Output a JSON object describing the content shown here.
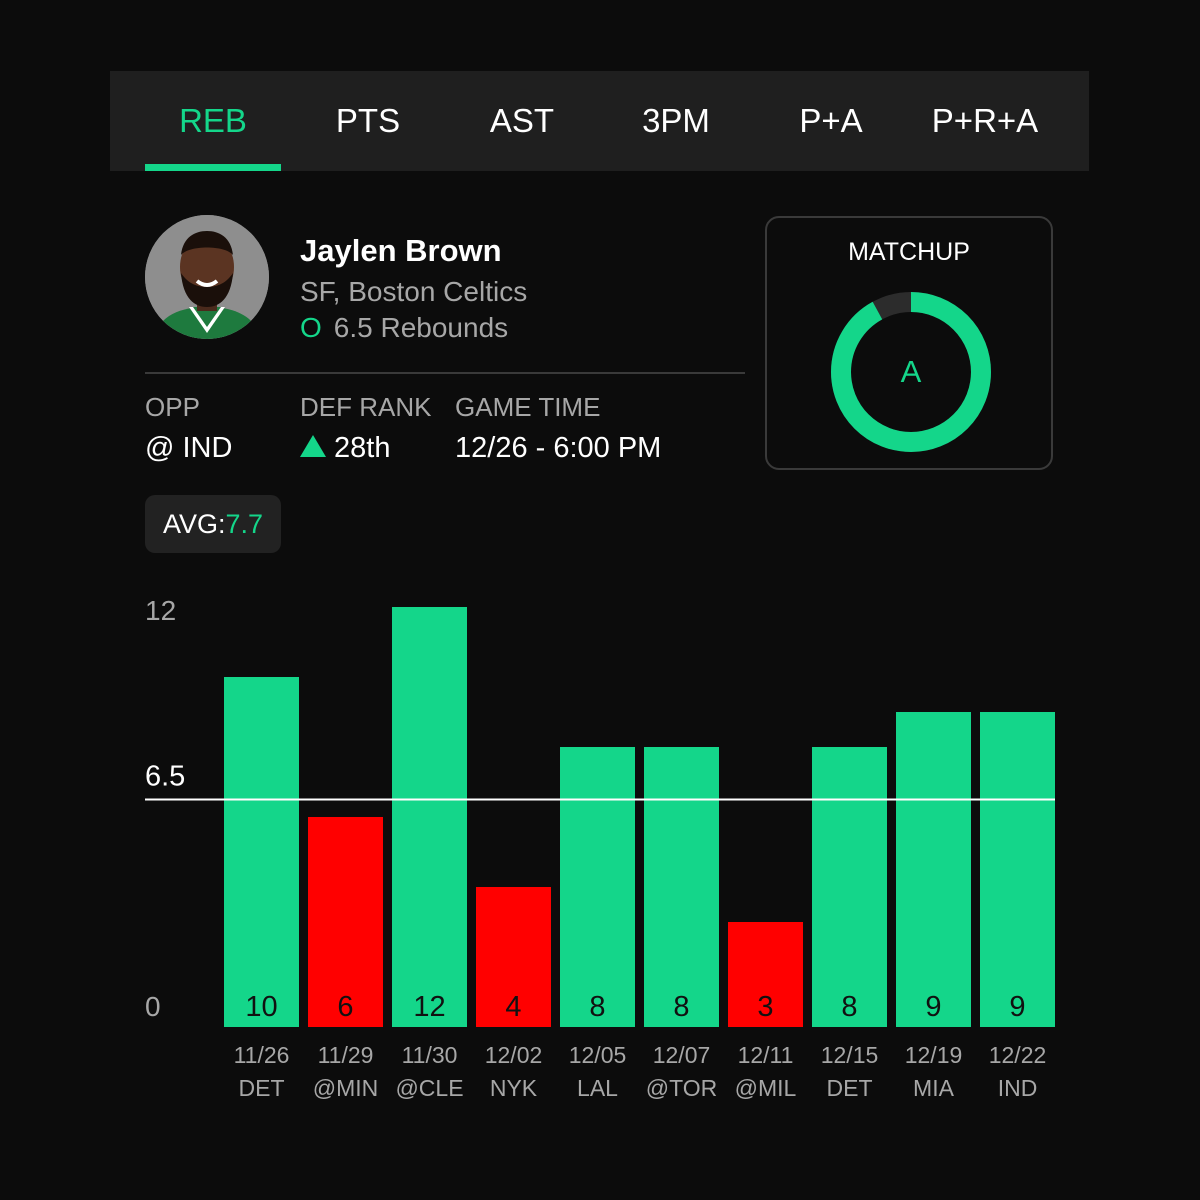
{
  "tabs": [
    {
      "label": "REB",
      "active": true
    },
    {
      "label": "PTS",
      "active": false
    },
    {
      "label": "AST",
      "active": false
    },
    {
      "label": "3PM",
      "active": false
    },
    {
      "label": "P+A",
      "active": false
    },
    {
      "label": "P+R+A",
      "active": false
    }
  ],
  "player": {
    "name": "Jaylen Brown",
    "position_team": "SF, Boston Celtics",
    "over_under": "O",
    "line_text": "6.5 Rebounds",
    "avatar_icon": "player-headshot"
  },
  "info": {
    "opp_label": "OPP",
    "opp_value": "@ IND",
    "def_rank_label": "DEF RANK",
    "def_rank_value": "28th",
    "def_rank_icon": "up-triangle-icon",
    "game_time_label": "GAME TIME",
    "game_time_value": "12/26 - 6:00 PM"
  },
  "matchup": {
    "title": "MATCHUP",
    "grade": "A",
    "fill_fraction": 0.92
  },
  "avg": {
    "label": "AVG:",
    "value": "7.7"
  },
  "colors": {
    "accent": "#14d68a",
    "miss": "#ff0000",
    "background": "#0c0c0c",
    "panel": "#1f1f1f"
  },
  "chart_data": {
    "type": "bar",
    "categories": [
      "11/26",
      "11/29",
      "11/30",
      "12/02",
      "12/05",
      "12/07",
      "12/11",
      "12/15",
      "12/19",
      "12/22"
    ],
    "opponents": [
      "DET",
      "@MIN",
      "@CLE",
      "NYK",
      "LAL",
      "@TOR",
      "@MIL",
      "DET",
      "MIA",
      "IND"
    ],
    "values": [
      10,
      6,
      12,
      4,
      8,
      8,
      3,
      8,
      9,
      9
    ],
    "line": 6.5,
    "line_label": "6.5",
    "y_ticks": [
      "12",
      "0"
    ],
    "ylim": [
      0,
      12
    ],
    "colors": {
      "over": "#14d68a",
      "under": "#ff0000"
    }
  }
}
